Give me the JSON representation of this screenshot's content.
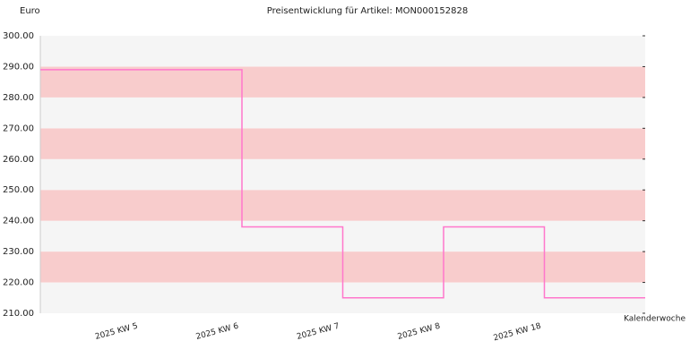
{
  "chart_data": {
    "type": "step-line",
    "title": "Preisentwicklung für Artikel: MON000152828",
    "y_label": "Euro",
    "x_label": "Kalenderwoche",
    "categories": [
      "2025 KW 5",
      "2025 KW 6",
      "2025 KW 7",
      "2025 KW 8",
      "2025 KW 18"
    ],
    "series": [
      {
        "color": "#ff77cc",
        "values": [
          289,
          238,
          215,
          238,
          215
        ]
      }
    ],
    "ylim": [
      210,
      300
    ],
    "yticks": [
      {
        "value": 210,
        "label": "210.00"
      },
      {
        "value": 220,
        "label": "220.00"
      },
      {
        "value": 230,
        "label": "230.00"
      },
      {
        "value": 240,
        "label": "240.00"
      },
      {
        "value": 250,
        "label": "250.00"
      },
      {
        "value": 260,
        "label": "260.00"
      },
      {
        "value": 270,
        "label": "270.00"
      },
      {
        "value": 280,
        "label": "280.00"
      },
      {
        "value": 290,
        "label": "290.00"
      },
      {
        "value": 300,
        "label": "300.00"
      }
    ],
    "band_colors": [
      "#f5f5f5",
      "#f8cccc"
    ]
  }
}
